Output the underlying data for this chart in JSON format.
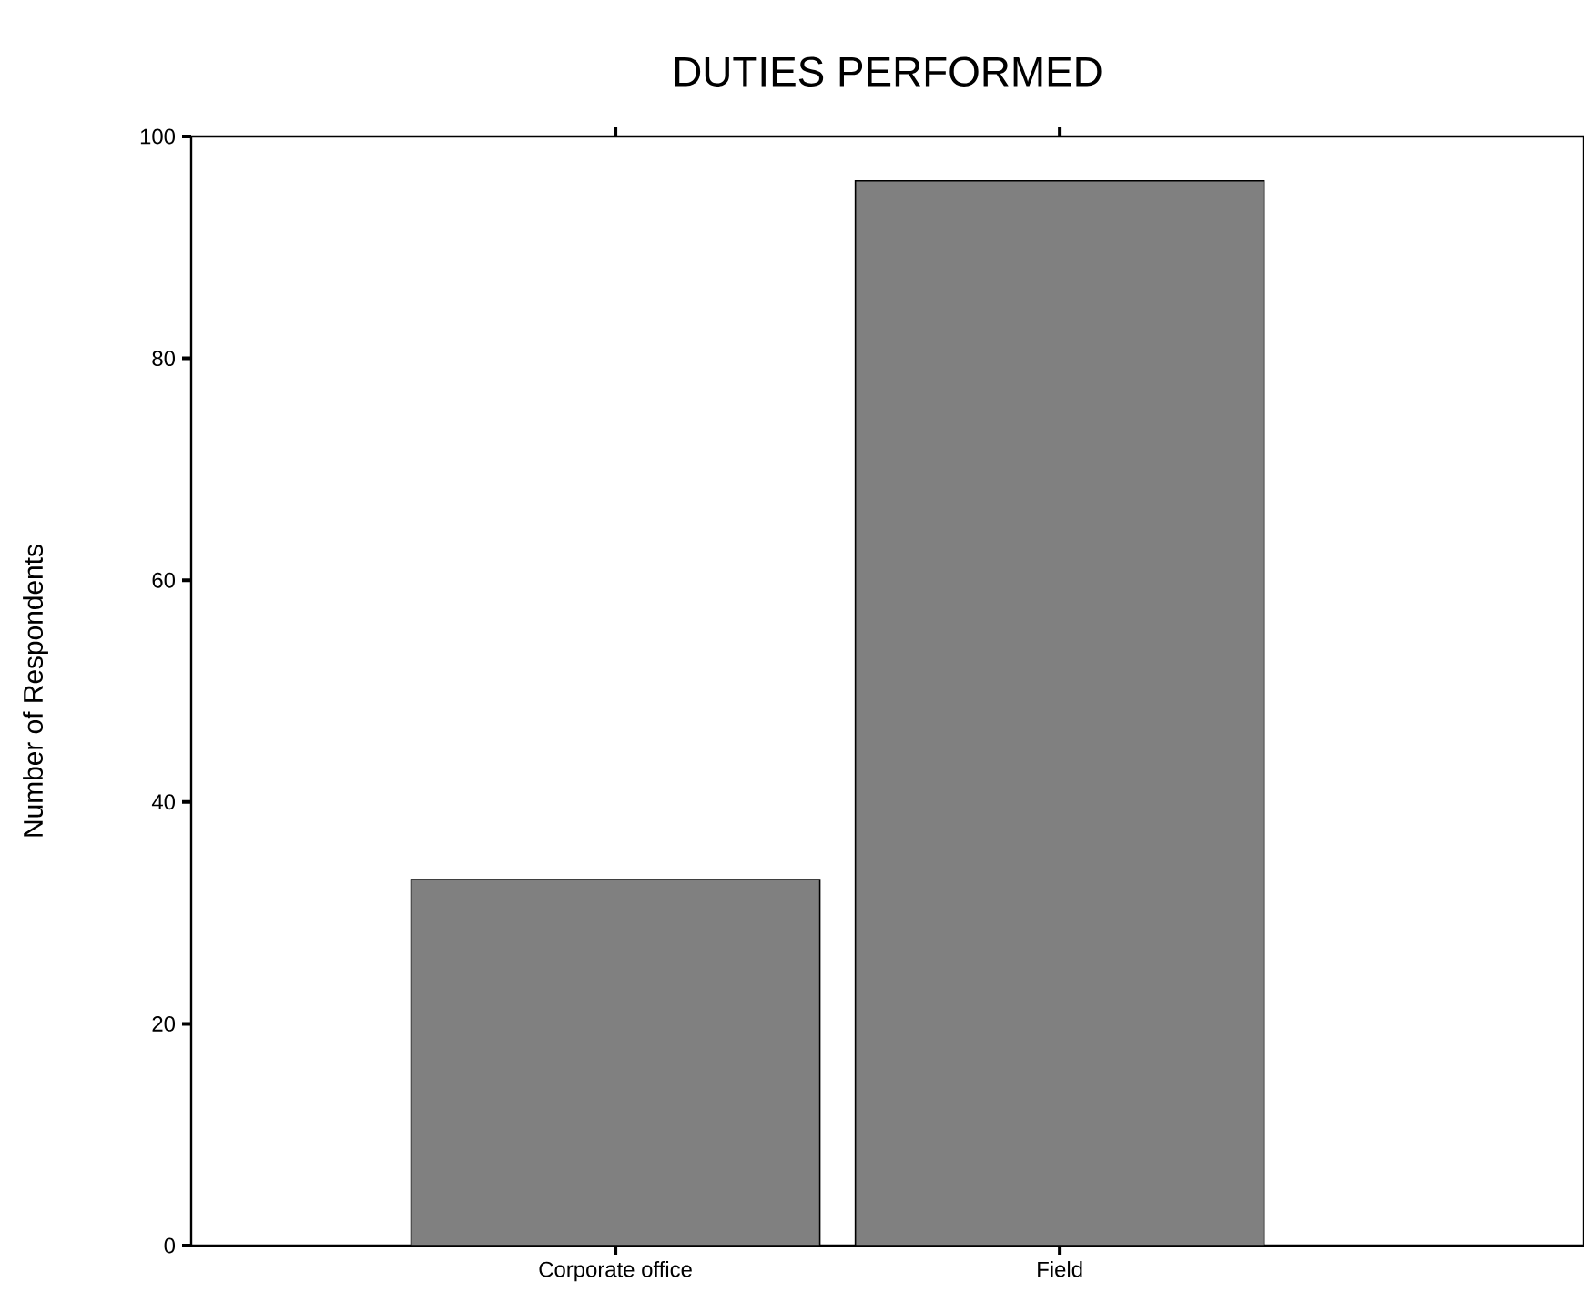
{
  "chart_data": {
    "type": "bar",
    "title": "DUTIES PERFORMED",
    "ylabel": "Number of Respondents",
    "categories": [
      "Corporate office",
      "Field"
    ],
    "values": [
      33,
      96
    ],
    "color": "#808080",
    "ylim": [
      0,
      100
    ],
    "yticks": [
      0,
      20,
      40,
      60,
      80,
      100
    ],
    "grid": false
  }
}
